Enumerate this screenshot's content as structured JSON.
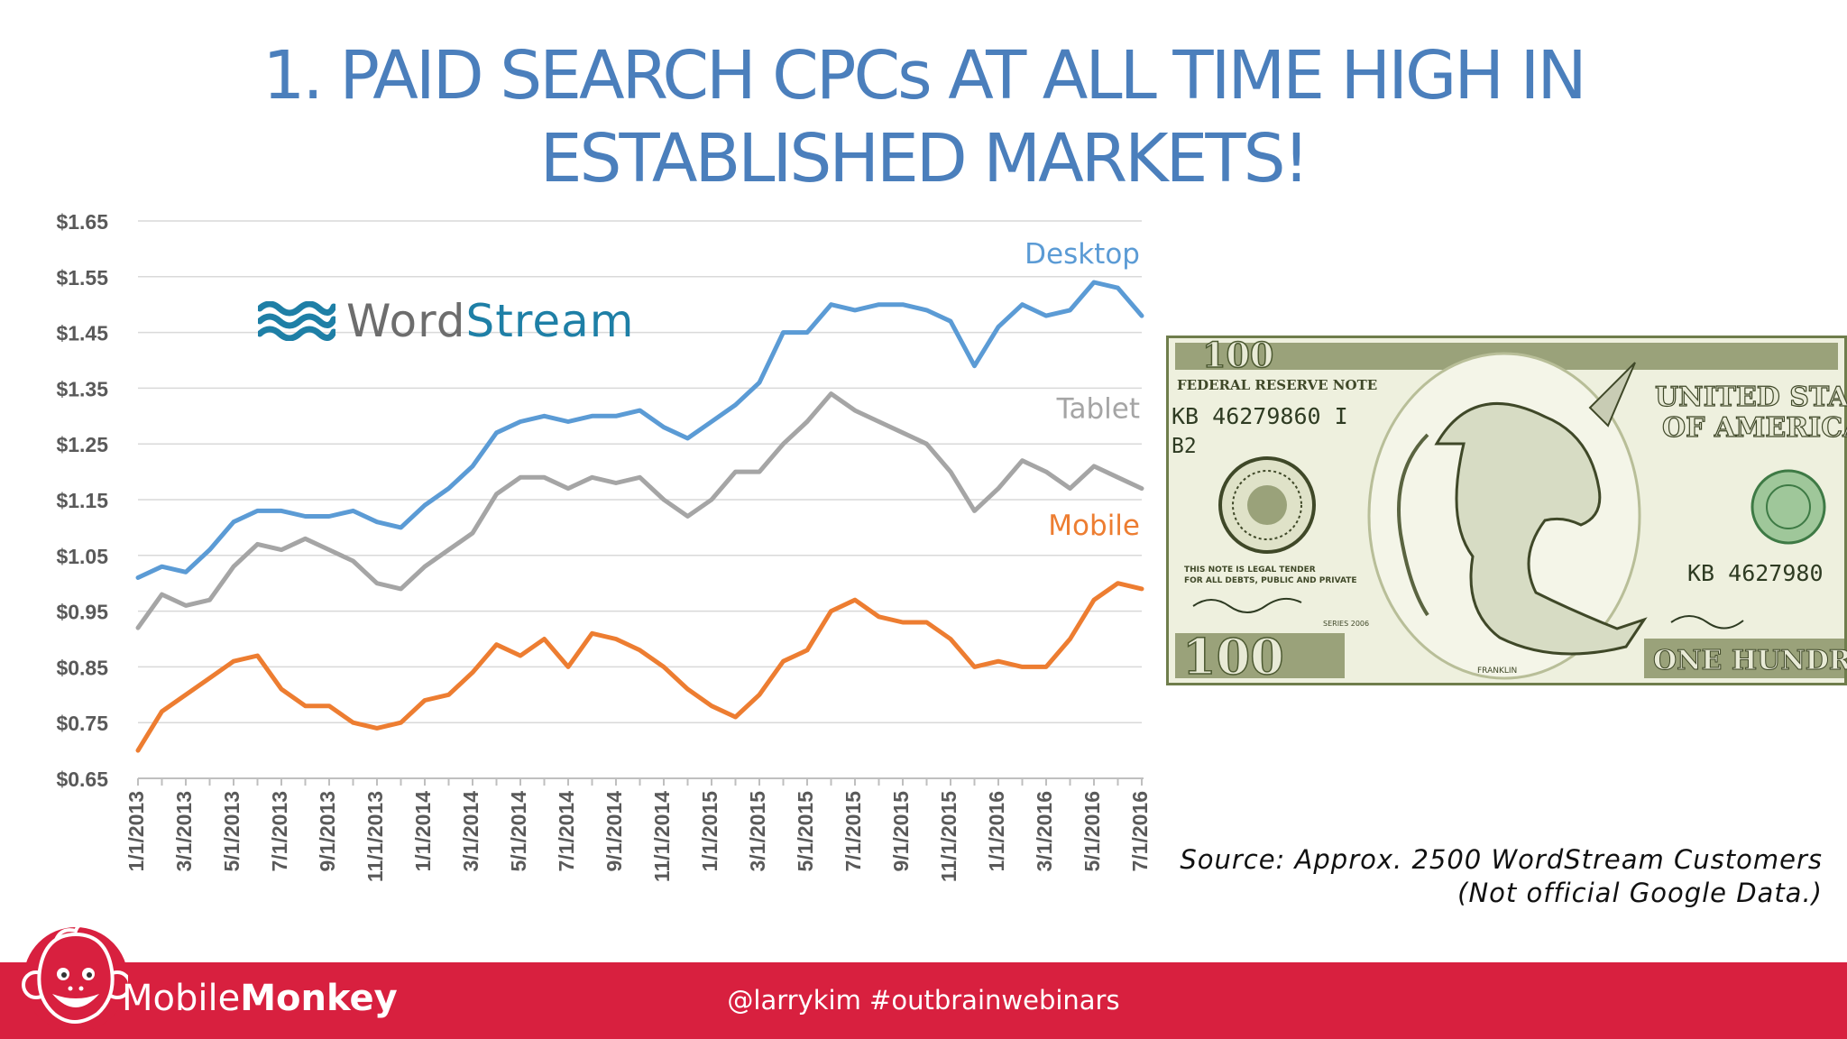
{
  "slide": {
    "title_line1": "1. PAID SEARCH CPCs AT ALL TIME HIGH IN",
    "title_line2": "ESTABLISHED MARKETS!"
  },
  "logo": {
    "part1": "Word",
    "part2": "Stream"
  },
  "source": {
    "line1": "Source: Approx. 2500 WordStream Customers",
    "line2": "(Not official Google Data.)"
  },
  "footer": {
    "brand_part1": "Mobile",
    "brand_part2": "Monkey",
    "handle": "@larrykim  #outbrainwebinars"
  },
  "bill": {
    "top_text": "FEDERAL RESERVE NOTE",
    "serial": "KB 46279860 I",
    "serial_right": "KB 4627980",
    "district": "B2",
    "country_line1": "UNITED STATES",
    "country_line2": "OF AMERICA",
    "tender_line1": "THIS NOTE IS LEGAL TENDER",
    "tender_line2": "FOR ALL DEBTS, PUBLIC AND PRIVATE",
    "denomination": "100",
    "bottom_text": "ONE HUNDRED",
    "portrait_label": "FRANKLIN",
    "series": "SERIES 2006"
  },
  "colors": {
    "title": "#4b7fbc",
    "desktop": "#5b9bd5",
    "tablet": "#a5a5a5",
    "mobile": "#ed7d31",
    "footer": "#d8203f",
    "logo_blue": "#1e7fa6",
    "bill_green": "#7c8a5b"
  },
  "chart_data": {
    "type": "line",
    "x": [
      "1/1/2013",
      "2/1/2013",
      "3/1/2013",
      "4/1/2013",
      "5/1/2013",
      "6/1/2013",
      "7/1/2013",
      "8/1/2013",
      "9/1/2013",
      "10/1/2013",
      "11/1/2013",
      "12/1/2013",
      "1/1/2014",
      "2/1/2014",
      "3/1/2014",
      "4/1/2014",
      "5/1/2014",
      "6/1/2014",
      "7/1/2014",
      "8/1/2014",
      "9/1/2014",
      "10/1/2014",
      "11/1/2014",
      "12/1/2014",
      "1/1/2015",
      "2/1/2015",
      "3/1/2015",
      "4/1/2015",
      "5/1/2015",
      "6/1/2015",
      "7/1/2015",
      "8/1/2015",
      "9/1/2015",
      "10/1/2015",
      "11/1/2015",
      "12/1/2015",
      "1/1/2016",
      "2/1/2016",
      "3/1/2016",
      "4/1/2016",
      "5/1/2016",
      "6/1/2016",
      "7/1/2016"
    ],
    "x_tick_labels": [
      "1/1/2013",
      "3/1/2013",
      "5/1/2013",
      "7/1/2013",
      "9/1/2013",
      "11/1/2013",
      "1/1/2014",
      "3/1/2014",
      "5/1/2014",
      "7/1/2014",
      "9/1/2014",
      "11/1/2014",
      "1/1/2015",
      "3/1/2015",
      "5/1/2015",
      "7/1/2015",
      "9/1/2015",
      "11/1/2015",
      "1/1/2016",
      "3/1/2016",
      "5/1/2016",
      "7/1/2016"
    ],
    "y_ticks": [
      "$1.65",
      "$1.55",
      "$1.45",
      "$1.35",
      "$1.25",
      "$1.15",
      "$1.05",
      "$0.95",
      "$0.85",
      "$0.75",
      "$0.65"
    ],
    "ylim": [
      0.65,
      1.65
    ],
    "grid": true,
    "series": [
      {
        "name": "Desktop",
        "color": "#5b9bd5",
        "values": [
          1.01,
          1.03,
          1.02,
          1.06,
          1.11,
          1.13,
          1.13,
          1.12,
          1.12,
          1.13,
          1.11,
          1.1,
          1.14,
          1.17,
          1.21,
          1.27,
          1.29,
          1.3,
          1.29,
          1.3,
          1.3,
          1.31,
          1.28,
          1.26,
          1.29,
          1.32,
          1.36,
          1.45,
          1.45,
          1.5,
          1.49,
          1.5,
          1.5,
          1.49,
          1.47,
          1.39,
          1.46,
          1.5,
          1.48,
          1.49,
          1.54,
          1.53,
          1.48
        ]
      },
      {
        "name": "Tablet",
        "color": "#a5a5a5",
        "values": [
          0.92,
          0.98,
          0.96,
          0.97,
          1.03,
          1.07,
          1.06,
          1.08,
          1.06,
          1.04,
          1.0,
          0.99,
          1.03,
          1.06,
          1.09,
          1.16,
          1.19,
          1.19,
          1.17,
          1.19,
          1.18,
          1.19,
          1.15,
          1.12,
          1.15,
          1.2,
          1.2,
          1.25,
          1.29,
          1.34,
          1.31,
          1.29,
          1.27,
          1.25,
          1.2,
          1.13,
          1.17,
          1.22,
          1.2,
          1.17,
          1.21,
          1.19,
          1.17
        ]
      },
      {
        "name": "Mobile",
        "color": "#ed7d31",
        "values": [
          0.7,
          0.77,
          0.8,
          0.83,
          0.86,
          0.87,
          0.81,
          0.78,
          0.78,
          0.75,
          0.74,
          0.75,
          0.79,
          0.8,
          0.84,
          0.89,
          0.87,
          0.9,
          0.85,
          0.91,
          0.9,
          0.88,
          0.85,
          0.81,
          0.78,
          0.76,
          0.8,
          0.86,
          0.88,
          0.95,
          0.97,
          0.94,
          0.93,
          0.93,
          0.9,
          0.85,
          0.86,
          0.85,
          0.85,
          0.9,
          0.97,
          1.0,
          0.99
        ]
      }
    ]
  }
}
